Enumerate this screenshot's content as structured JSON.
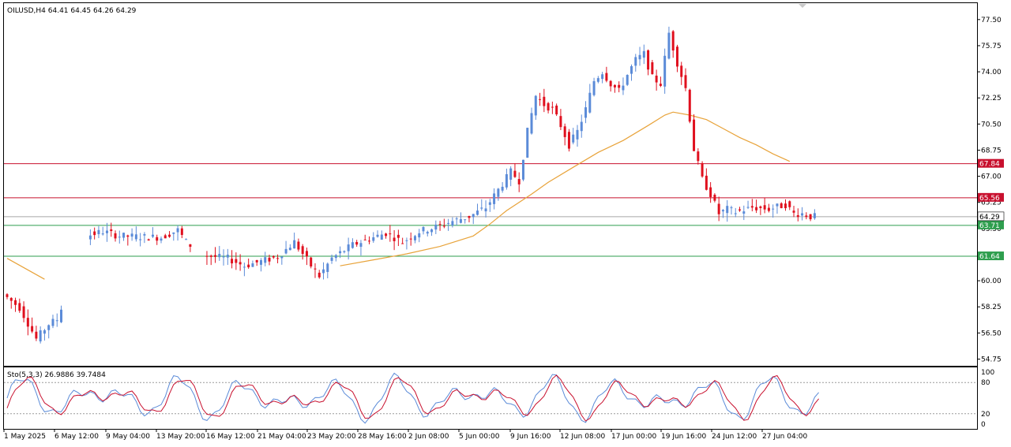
{
  "chart_data": [
    {
      "type": "candlestick",
      "title": "OILUSD,H4  64.41 64.45 64.26 64.29",
      "symbol": "OILUSD",
      "timeframe": "H4",
      "ohlc_last": {
        "open": 64.41,
        "high": 64.45,
        "low": 64.26,
        "close": 64.29
      },
      "ylim": [
        54.3,
        78.6
      ],
      "y_ticks": [
        "77.50",
        "75.75",
        "74.00",
        "72.25",
        "70.50",
        "68.75",
        "67.00",
        "65.25",
        "63.50",
        "61.75",
        "60.00",
        "58.25",
        "56.50",
        "54.75"
      ],
      "x_ticks": [
        "1 May 2025",
        "6 May 12:00",
        "9 May 04:00",
        "13 May 20:00",
        "16 May 12:00",
        "21 May 04:00",
        "23 May 20:00",
        "28 May 16:00",
        "2 Jun 08:00",
        "5 Jun 00:00",
        "9 Jun 16:00",
        "12 Jun 08:00",
        "17 Jun 00:00",
        "19 Jun 16:00",
        "24 Jun 12:00",
        "27 Jun 04:00"
      ],
      "horizontal_lines": [
        {
          "label": "67.84",
          "value": 67.84,
          "color": "#c8102e"
        },
        {
          "label": "65.56",
          "value": 65.56,
          "color": "#c8102e"
        },
        {
          "label": "63.71",
          "value": 63.71,
          "color": "#2e9e4e"
        },
        {
          "label": "61.64",
          "value": 61.64,
          "color": "#2e9e4e"
        }
      ],
      "current_price": {
        "label": "64.29",
        "value": 64.29
      },
      "colors": {
        "bull": "#5b8bd8",
        "bear": "#e0101e",
        "ma": "#e8a33a",
        "bg": "#ffffff",
        "frame": "#000000"
      },
      "price_path": [
        [
          0,
          59.1
        ],
        [
          4,
          58.2
        ],
        [
          8,
          56.1
        ],
        [
          11,
          57.1
        ],
        [
          13,
          57.4
        ],
        [
          20,
          63.0
        ],
        [
          24,
          63.3
        ],
        [
          28,
          63.0
        ],
        [
          38,
          62.9
        ],
        [
          42,
          63.4
        ],
        [
          44,
          62.6
        ],
        [
          48,
          61.7
        ],
        [
          54,
          61.5
        ],
        [
          58,
          61.0
        ],
        [
          62,
          61.3
        ],
        [
          66,
          61.6
        ],
        [
          70,
          62.6
        ],
        [
          74,
          61.0
        ],
        [
          76,
          60.3
        ],
        [
          79,
          61.5
        ],
        [
          84,
          62.4
        ],
        [
          88,
          62.8
        ],
        [
          92,
          63.2
        ],
        [
          96,
          62.6
        ],
        [
          100,
          63.3
        ],
        [
          104,
          63.6
        ],
        [
          108,
          64.0
        ],
        [
          112,
          64.3
        ],
        [
          116,
          64.9
        ],
        [
          120,
          66.5
        ],
        [
          122,
          67.3
        ],
        [
          124,
          66.7
        ],
        [
          126,
          70.0
        ],
        [
          128,
          72.4
        ],
        [
          130,
          71.8
        ],
        [
          132,
          71.5
        ],
        [
          134,
          70.4
        ],
        [
          136,
          69.1
        ],
        [
          138,
          70.0
        ],
        [
          140,
          71.5
        ],
        [
          142,
          73.4
        ],
        [
          144,
          74.0
        ],
        [
          146,
          73.2
        ],
        [
          148,
          72.7
        ],
        [
          150,
          73.8
        ],
        [
          152,
          74.8
        ],
        [
          154,
          75.2
        ],
        [
          156,
          73.6
        ],
        [
          158,
          73.2
        ],
        [
          160,
          76.6
        ],
        [
          162,
          74.6
        ],
        [
          164,
          72.9
        ],
        [
          166,
          68.8
        ],
        [
          168,
          66.8
        ],
        [
          170,
          65.8
        ],
        [
          172,
          64.5
        ],
        [
          174,
          64.8
        ],
        [
          176,
          64.6
        ],
        [
          180,
          64.9
        ],
        [
          184,
          64.8
        ],
        [
          188,
          65.1
        ],
        [
          190,
          64.5
        ],
        [
          192,
          64.5
        ],
        [
          194,
          64.3
        ]
      ],
      "ma_path": [
        [
          0,
          61.5
        ],
        [
          9,
          60.1
        ],
        [
          80,
          61.0
        ],
        [
          88,
          61.4
        ],
        [
          96,
          61.8
        ],
        [
          104,
          62.3
        ],
        [
          112,
          63.0
        ],
        [
          116,
          63.8
        ],
        [
          120,
          64.7
        ],
        [
          126,
          65.8
        ],
        [
          130,
          66.6
        ],
        [
          136,
          67.6
        ],
        [
          142,
          68.6
        ],
        [
          148,
          69.4
        ],
        [
          154,
          70.4
        ],
        [
          158,
          71.1
        ],
        [
          160,
          71.3
        ],
        [
          164,
          71.1
        ],
        [
          168,
          70.8
        ],
        [
          172,
          70.2
        ],
        [
          176,
          69.6
        ],
        [
          180,
          69.1
        ],
        [
          184,
          68.5
        ],
        [
          188,
          68.0
        ]
      ]
    },
    {
      "type": "line",
      "title": "Sto(5,3,3) 26.9886 39.7484",
      "indicator": "Stochastic",
      "main": 26.9886,
      "signal": 39.7484,
      "ylim": [
        0,
        100
      ],
      "y_ticks": [
        "100",
        "80",
        "20",
        "0"
      ],
      "levels": [
        80,
        20
      ],
      "colors": {
        "main": "#5b8bd8",
        "signal": "#c8102e"
      }
    }
  ]
}
